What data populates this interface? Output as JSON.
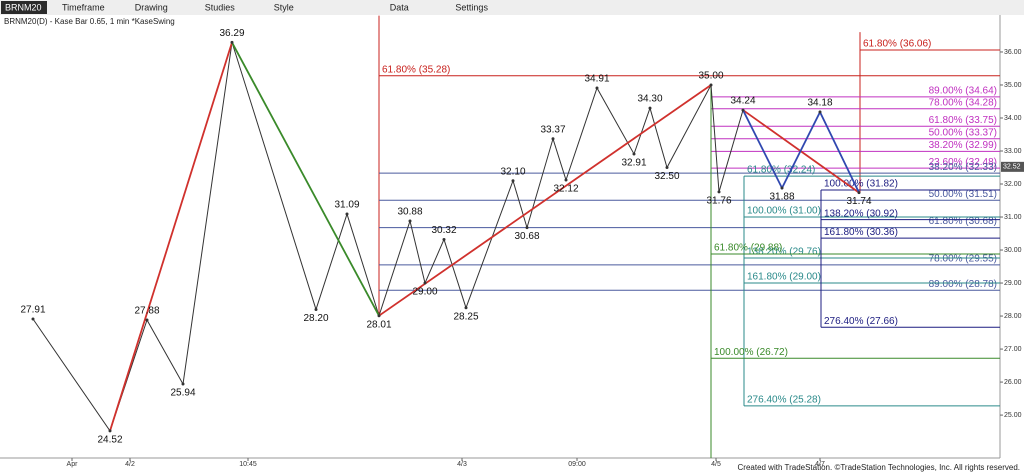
{
  "toolbar": {
    "symbol": "BRNM20",
    "items": [
      "Timeframe",
      "Drawing",
      "Studies",
      "Style",
      "Data",
      "Settings"
    ]
  },
  "footer": "Created with TradeStation. ©TradeStation Technologies, Inc. All rights reserved.",
  "chart_data": {
    "type": "line",
    "title": "BRNM20(D) - Kase Bar 0.65, 1 min *KaseSwing",
    "x": [
      6.6,
      22,
      29.4,
      36.6,
      46.4,
      63.2,
      69.4,
      75.8,
      82,
      85,
      88.8,
      93.2,
      102.6,
      105.4,
      110.6,
      113.2,
      119.4,
      126.8,
      130,
      133.4,
      142.2,
      143.8,
      148.6,
      156.4,
      164,
      171.8
    ],
    "values": [
      27.91,
      24.52,
      27.88,
      25.94,
      36.29,
      28.2,
      31.09,
      28.01,
      30.88,
      29.0,
      30.32,
      28.25,
      32.1,
      30.68,
      33.37,
      32.12,
      34.91,
      32.91,
      34.3,
      32.5,
      35.0,
      31.76,
      34.24,
      31.88,
      34.18,
      31.74
    ],
    "value_labels": [
      "27.91",
      "24.52",
      "27.88",
      "25.94",
      "36.29",
      "28.20",
      "31.09",
      "28.01",
      "30.88",
      "29.00",
      "30.32",
      "28.25",
      "32.10",
      "30.68",
      "33.37",
      "32.12",
      "34.91",
      "32.91",
      "34.30",
      "32.50",
      "35.00",
      "31.76",
      "34.24",
      "31.88",
      "34.18",
      "31.74"
    ],
    "color": "#333333",
    "overlays": [
      {
        "color": "#d0312d",
        "x": [
          22,
          46.4
        ],
        "values": [
          24.52,
          36.29
        ]
      },
      {
        "color": "#3a8a2a",
        "x": [
          46.4,
          75.8
        ],
        "values": [
          36.29,
          28.01
        ]
      },
      {
        "color": "#d0312d",
        "x": [
          75.8,
          142.2
        ],
        "values": [
          28.01,
          35.0
        ]
      },
      {
        "color": "#d0312d",
        "x": [
          148.6,
          171.8
        ],
        "values": [
          34.24,
          31.74
        ]
      },
      {
        "color": "#3048b0",
        "x": [
          148.6,
          156.4,
          164,
          171.8
        ],
        "values": [
          34.24,
          31.88,
          34.18,
          31.74
        ]
      }
    ],
    "fib_groups": [
      {
        "color": "#c8201c",
        "x0": 75.8,
        "span": [
          28.01,
          37.1
        ],
        "align": "left",
        "levels": [
          {
            "value": 35.28,
            "label": "61.80% (35.28)"
          }
        ]
      },
      {
        "color": "#c8201c",
        "x0": 172,
        "span": [
          31.74,
          36.6
        ],
        "align": "left",
        "levels": [
          {
            "value": 36.06,
            "label": "61.80% (36.06)"
          }
        ]
      },
      {
        "color": "#c030c0",
        "x0": 142.2,
        "align": "right",
        "levels": [
          {
            "value": 34.64,
            "label": "89.00% (34.64)"
          },
          {
            "value": 34.28,
            "label": "78.00% (34.28)"
          },
          {
            "value": 33.75,
            "label": "61.80% (33.75)"
          },
          {
            "value": 33.37,
            "label": "50.00% (33.37)"
          },
          {
            "value": 32.99,
            "label": "38.20% (32.99)"
          },
          {
            "value": 32.48,
            "label": "23.60% (32.48)"
          }
        ]
      },
      {
        "color": "#4a5a9e",
        "x0": 75.8,
        "align": "right",
        "levels": [
          {
            "value": 32.33,
            "label": "38.20% (32.33)"
          },
          {
            "value": 31.51,
            "label": "50.00% (31.51)"
          },
          {
            "value": 30.68,
            "label": "61.80% (30.68)"
          },
          {
            "value": 29.55,
            "label": "78.00% (29.55)"
          },
          {
            "value": 28.78,
            "label": "89.00% (28.78)"
          }
        ]
      },
      {
        "color": "#2a8a8a",
        "x0": 148.8,
        "span": [
          25.28,
          32.24
        ],
        "align": "left",
        "levels": [
          {
            "value": 32.24,
            "label": "61.80% (32.24)"
          },
          {
            "value": 31.0,
            "label": "100.00% (31.00)"
          },
          {
            "value": 29.76,
            "label": "138.20% (29.76)"
          },
          {
            "value": 29.0,
            "label": "161.80% (29.00)"
          },
          {
            "value": 25.28,
            "label": "276.40% (25.28)"
          }
        ]
      },
      {
        "color": "#3a8a2a",
        "x0": 142.2,
        "span": [
          23.7,
          35.0
        ],
        "align": "left",
        "levels": [
          {
            "value": 29.88,
            "label": "61.80% (29.88)"
          },
          {
            "value": 26.72,
            "label": "100.00% (26.72)"
          }
        ]
      },
      {
        "color": "#1c1c80",
        "x0": 164.2,
        "span": [
          27.66,
          31.82
        ],
        "align": "left",
        "levels": [
          {
            "value": 31.82,
            "label": "100.00% (31.82)"
          },
          {
            "value": 30.92,
            "label": "138.20% (30.92)"
          },
          {
            "value": 30.36,
            "label": "161.80% (30.36)"
          },
          {
            "value": 27.66,
            "label": "276.40% (27.66)"
          }
        ]
      }
    ],
    "last": {
      "value": 32.52,
      "label": "32.52"
    },
    "xlim": [
      0,
      200
    ],
    "xticks": [
      {
        "value": 14.4,
        "label": "Apr"
      },
      {
        "value": 26,
        "label": "4/2"
      },
      {
        "value": 49.6,
        "label": "10:45"
      },
      {
        "value": 92.4,
        "label": "4/3"
      },
      {
        "value": 115.4,
        "label": "09:00"
      },
      {
        "value": 143.2,
        "label": "4/5"
      },
      {
        "value": 164,
        "label": "4/7"
      }
    ],
    "ylim": [
      23.7,
      37.12
    ],
    "yticks": [
      {
        "value": 25,
        "label": "25.00"
      },
      {
        "value": 26,
        "label": "26.00"
      },
      {
        "value": 27,
        "label": "27.00"
      },
      {
        "value": 28,
        "label": "28.00"
      },
      {
        "value": 29,
        "label": "29.00"
      },
      {
        "value": 30,
        "label": "30.00"
      },
      {
        "value": 31,
        "label": "31.00"
      },
      {
        "value": 32,
        "label": "32.00"
      },
      {
        "value": 33,
        "label": "33.00"
      },
      {
        "value": 34,
        "label": "34.00"
      },
      {
        "value": 35,
        "label": "35.00"
      },
      {
        "value": 36,
        "label": "36.00"
      }
    ]
  }
}
